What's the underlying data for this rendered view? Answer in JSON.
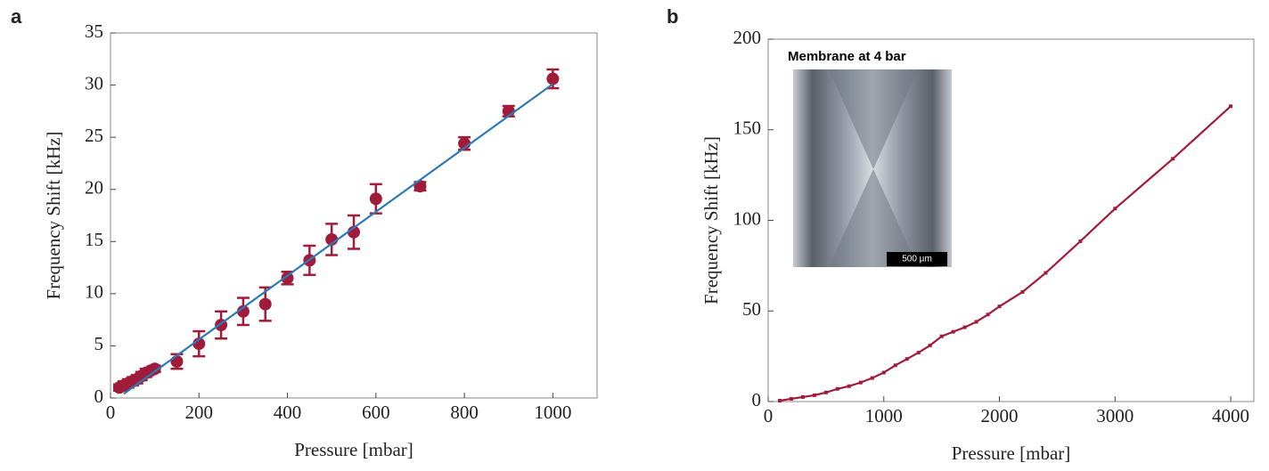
{
  "chart_data": [
    {
      "type": "scatter",
      "panel_label": "a",
      "x_label": "Pressure [mbar]",
      "y_label": "Frequency Shift [kHz]",
      "xlim": [
        0,
        1100
      ],
      "xticks": [
        0,
        200,
        400,
        600,
        800,
        1000
      ],
      "ylim": [
        0,
        35
      ],
      "yticks": [
        0,
        5,
        10,
        15,
        20,
        25,
        30,
        35
      ],
      "series": [
        {
          "mode": "markers",
          "color": "#a01c3a",
          "x": [
            20,
            30,
            40,
            50,
            60,
            70,
            80,
            90,
            100,
            150,
            200,
            250,
            300,
            350,
            400,
            450,
            500,
            550,
            600,
            700,
            800,
            900,
            1000
          ],
          "values": [
            1.0,
            1.2,
            1.4,
            1.6,
            1.8,
            2.1,
            2.4,
            2.6,
            2.8,
            3.5,
            5.2,
            7.0,
            8.3,
            9.0,
            11.5,
            13.2,
            15.2,
            15.9,
            19.1,
            20.3,
            24.4,
            27.5,
            30.6
          ],
          "errors": [
            0.3,
            0.4,
            0.4,
            0.4,
            0.4,
            0.4,
            0.4,
            0.3,
            0.3,
            0.7,
            1.2,
            1.3,
            1.3,
            1.6,
            0.6,
            1.4,
            1.5,
            1.6,
            1.4,
            0.4,
            0.6,
            0.5,
            0.9
          ]
        },
        {
          "mode": "line",
          "color": "#2b7bb9",
          "x": [
            30,
            1000
          ],
          "values": [
            0.4,
            30.1
          ]
        }
      ]
    },
    {
      "type": "line",
      "panel_label": "b",
      "x_label": "Pressure [mbar]",
      "y_label": "Frequency Shift [kHz]",
      "xlim": [
        0,
        4200
      ],
      "xticks": [
        0,
        1000,
        2000,
        3000,
        4000
      ],
      "ylim": [
        0,
        200
      ],
      "yticks": [
        0,
        50,
        100,
        150,
        200
      ],
      "inset": {
        "title": "Membrane at 4 bar",
        "scale_label": "500 µm"
      },
      "series": [
        {
          "mode": "line markers",
          "color": "#a01c3a",
          "x": [
            100,
            200,
            300,
            400,
            500,
            600,
            700,
            800,
            900,
            1000,
            1100,
            1200,
            1300,
            1400,
            1500,
            1600,
            1700,
            1800,
            1900,
            2000,
            2200,
            2400,
            2700,
            3000,
            3500,
            4000
          ],
          "values": [
            0.5,
            1.5,
            2.5,
            3.5,
            5,
            7,
            8.5,
            10.5,
            13,
            16,
            20,
            23.5,
            27,
            31,
            36,
            38.5,
            41,
            44,
            48,
            52.5,
            60.5,
            71,
            88.5,
            106.5,
            134,
            163
          ]
        }
      ]
    }
  ]
}
